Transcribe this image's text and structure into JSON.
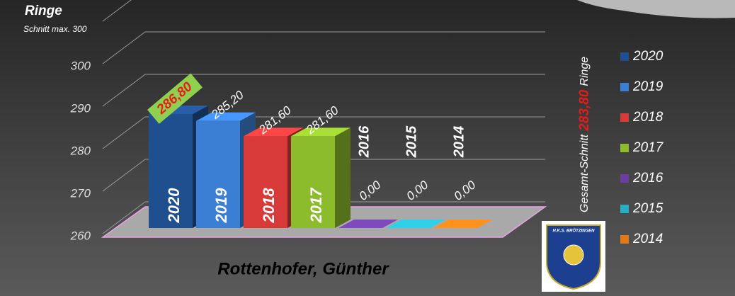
{
  "chart_data": {
    "type": "bar3d",
    "title": "Ringe",
    "subtitle": "Schnitt max. 300",
    "xlabel": "Rottenhofer, Günther",
    "categories": [
      "2020",
      "2019",
      "2018",
      "2017",
      "2016",
      "2015",
      "2014"
    ],
    "series": [
      {
        "name": "Ringe",
        "values": [
          286.8,
          285.2,
          281.6,
          281.6,
          0,
          0,
          0
        ],
        "value_labels": [
          "286,80",
          "285,20",
          "281,60",
          "281,60",
          "0,00",
          "0,00",
          "0,00"
        ],
        "colors": [
          "#1f4f8f",
          "#3b7fd4",
          "#d83a3a",
          "#8cbb2c",
          "#6a3e9e",
          "#27aec1",
          "#e07a18"
        ]
      }
    ],
    "ylim": [
      260,
      310
    ],
    "yticks": [
      260,
      270,
      280,
      290,
      300
    ],
    "grid": true,
    "legend": "right",
    "annotation": {
      "prefix": "Gesamt-Schnitt",
      "value": 283.8,
      "value_label": "283,80",
      "suffix": "Ringe"
    },
    "logo_text": "H.K.S. BRÖTZINGEN"
  }
}
